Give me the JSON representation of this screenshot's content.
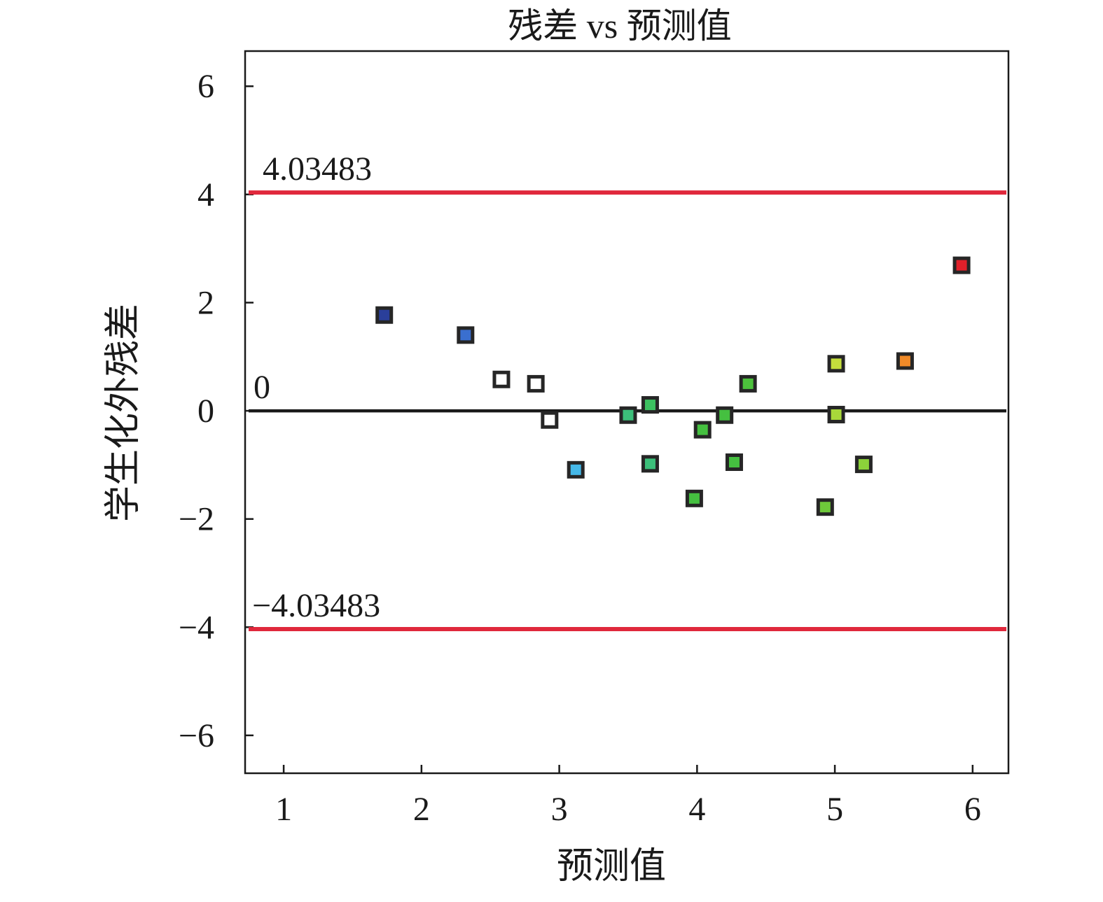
{
  "chart_data": {
    "type": "scatter",
    "title": "残差 vs 预测值",
    "xlabel": "预测值",
    "ylabel": "学生化外残差",
    "xlim": [
      0.72,
      6.26
    ],
    "ylim": [
      -6.7,
      6.65
    ],
    "xticks": [
      1,
      2,
      3,
      4,
      5,
      6
    ],
    "yticks": [
      6,
      4,
      2,
      0,
      -2,
      -4,
      -6
    ],
    "xtick_labels": [
      "1",
      "2",
      "3",
      "4",
      "5",
      "6"
    ],
    "ytick_labels": [
      "6",
      "4",
      "2",
      "0",
      "−2",
      "−4",
      "−6"
    ],
    "grid": false,
    "reference_lines": [
      {
        "y": 4.03483,
        "label": "4.03483",
        "color": "#e0283c"
      },
      {
        "y": 0,
        "label": "0",
        "color": "#1a1a1a"
      },
      {
        "y": -4.03483,
        "label": "−4.03483",
        "color": "#e0283c"
      }
    ],
    "points": [
      {
        "x": 1.73,
        "y": 1.77,
        "color": "#2a3f9a"
      },
      {
        "x": 2.32,
        "y": 1.4,
        "color": "#3a6fcf"
      },
      {
        "x": 2.58,
        "y": 0.58,
        "color": "#ffffff"
      },
      {
        "x": 2.83,
        "y": 0.5,
        "color": "#ffffff"
      },
      {
        "x": 2.93,
        "y": -0.17,
        "color": "#ffffff"
      },
      {
        "x": 3.12,
        "y": -1.09,
        "color": "#45b8e8"
      },
      {
        "x": 3.5,
        "y": -0.08,
        "color": "#3cbf7a"
      },
      {
        "x": 3.66,
        "y": 0.11,
        "color": "#3cc060"
      },
      {
        "x": 3.66,
        "y": -0.98,
        "color": "#3cbf7a"
      },
      {
        "x": 3.98,
        "y": -1.62,
        "color": "#45c040"
      },
      {
        "x": 4.04,
        "y": -0.35,
        "color": "#45c040"
      },
      {
        "x": 4.2,
        "y": -0.08,
        "color": "#45c040"
      },
      {
        "x": 4.27,
        "y": -0.95,
        "color": "#45c040"
      },
      {
        "x": 4.37,
        "y": 0.5,
        "color": "#4cc23c"
      },
      {
        "x": 4.93,
        "y": -1.78,
        "color": "#6ec83a"
      },
      {
        "x": 5.01,
        "y": 0.87,
        "color": "#c4de3c"
      },
      {
        "x": 5.01,
        "y": -0.07,
        "color": "#a8d83a"
      },
      {
        "x": 5.21,
        "y": -0.99,
        "color": "#8cd23a"
      },
      {
        "x": 5.51,
        "y": 0.92,
        "color": "#f08a28"
      },
      {
        "x": 5.92,
        "y": 2.69,
        "color": "#e0202a"
      }
    ]
  }
}
